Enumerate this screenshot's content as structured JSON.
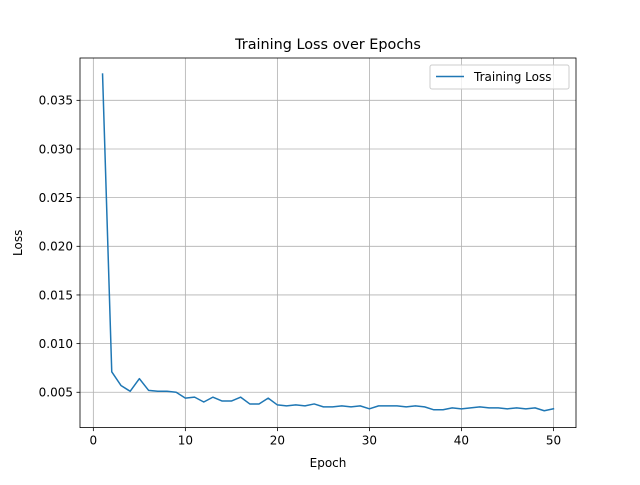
{
  "chart_data": {
    "type": "line",
    "title": "Training Loss over Epochs",
    "xlabel": "Epoch",
    "ylabel": "Loss",
    "xlim": [
      -1.45,
      52.45
    ],
    "ylim": [
      0.00137,
      0.03935
    ],
    "xticks": [
      0,
      10,
      20,
      30,
      40,
      50
    ],
    "xtick_labels": [
      "0",
      "10",
      "20",
      "30",
      "40",
      "50"
    ],
    "yticks": [
      0.005,
      0.01,
      0.015,
      0.02,
      0.025,
      0.03,
      0.035
    ],
    "ytick_labels": [
      "0.005",
      "0.010",
      "0.015",
      "0.020",
      "0.025",
      "0.030",
      "0.035"
    ],
    "grid": true,
    "legend_position": "upper right",
    "series": [
      {
        "name": "Training Loss",
        "color": "#1f77b4",
        "x": [
          1,
          2,
          3,
          4,
          5,
          6,
          7,
          8,
          9,
          10,
          11,
          12,
          13,
          14,
          15,
          16,
          17,
          18,
          19,
          20,
          21,
          22,
          23,
          24,
          25,
          26,
          27,
          28,
          29,
          30,
          31,
          32,
          33,
          34,
          35,
          36,
          37,
          38,
          39,
          40,
          41,
          42,
          43,
          44,
          45,
          46,
          47,
          48,
          49,
          50
        ],
        "y": [
          0.0377,
          0.0071,
          0.0057,
          0.0051,
          0.0064,
          0.0052,
          0.0051,
          0.0051,
          0.005,
          0.0044,
          0.0045,
          0.004,
          0.0045,
          0.0041,
          0.0041,
          0.0045,
          0.0038,
          0.0038,
          0.0044,
          0.0037,
          0.0036,
          0.0037,
          0.0036,
          0.0038,
          0.0035,
          0.0035,
          0.0036,
          0.0035,
          0.0036,
          0.0033,
          0.0036,
          0.0036,
          0.0036,
          0.0035,
          0.0036,
          0.0035,
          0.0032,
          0.0032,
          0.0034,
          0.0033,
          0.0034,
          0.0035,
          0.0034,
          0.0034,
          0.0033,
          0.0034,
          0.0033,
          0.0034,
          0.0031,
          0.0033
        ]
      }
    ]
  }
}
